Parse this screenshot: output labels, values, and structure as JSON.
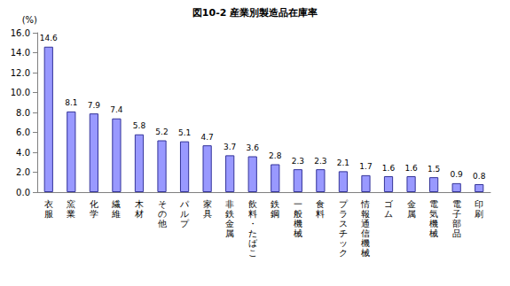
{
  "chart_data": {
    "type": "bar",
    "title": "図10-2 産業別製造品在庫率",
    "ylabel": "(%)",
    "categories": [
      "衣服",
      "窯業",
      "化学",
      "繊維",
      "木材",
      "その他",
      "パルプ",
      "家具",
      "非鉄金属",
      "飲料・たばこ",
      "鉄鋼",
      "一般機械",
      "食料",
      "プラスチック",
      "情報通信機械",
      "ゴム",
      "金属",
      "電気機械",
      "電子部品",
      "印刷"
    ],
    "values": [
      14.6,
      8.1,
      7.9,
      7.4,
      5.8,
      5.2,
      5.1,
      4.7,
      3.7,
      3.6,
      2.8,
      2.3,
      2.3,
      2.1,
      1.7,
      1.6,
      1.6,
      1.5,
      0.9,
      0.8
    ],
    "color": "#9999ff",
    "ylim": [
      0,
      16
    ],
    "yticks": [
      {
        "value": 0,
        "label": "0.0"
      },
      {
        "value": 2,
        "label": "2.0"
      },
      {
        "value": 4,
        "label": "4.0"
      },
      {
        "value": 6,
        "label": "6.0"
      },
      {
        "value": 8,
        "label": "8.0"
      },
      {
        "value": 10,
        "label": "10.0"
      },
      {
        "value": 12,
        "label": "12.0"
      },
      {
        "value": 14,
        "label": "14.0"
      },
      {
        "value": 16,
        "label": "16.0"
      }
    ],
    "grid": false,
    "data_labels": true
  }
}
